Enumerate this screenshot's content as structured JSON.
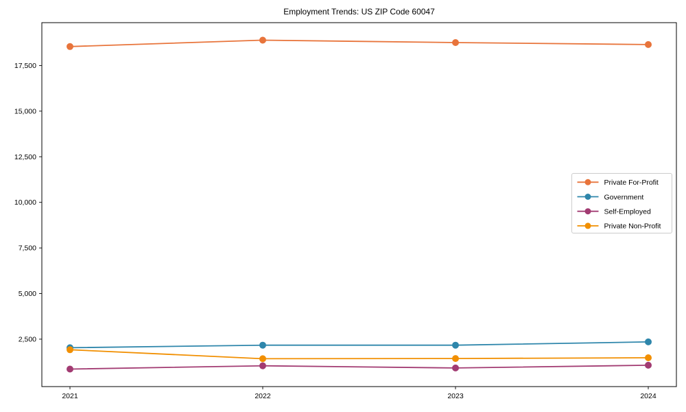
{
  "chart": {
    "background_color": "#ffffff",
    "axis_color": "#000000",
    "text_color": "#000000",
    "legend_border_color": "#cccccc",
    "legend_background": "#ffffff"
  },
  "chart_data": {
    "type": "line",
    "title": "Employment Trends: US ZIP Code 60047",
    "xlabel": "",
    "ylabel": "",
    "grid": false,
    "legend_position": "center-right",
    "x": [
      2021,
      2022,
      2023,
      2024
    ],
    "x_tick_labels": [
      "2021",
      "2022",
      "2023",
      "2024"
    ],
    "y_ticks": [
      2500,
      5000,
      7500,
      10000,
      12500,
      15000,
      17500
    ],
    "y_tick_labels": [
      "2,500",
      "5,000",
      "7,500",
      "10,000",
      "12,500",
      "15,000",
      "17,500"
    ],
    "ylim": [
      -100,
      19850
    ],
    "series": [
      {
        "name": "Private For-Profit",
        "color": "#E8743B",
        "values": [
          18540,
          18890,
          18760,
          18650
        ]
      },
      {
        "name": "Government",
        "color": "#2E86AB",
        "values": [
          2030,
          2170,
          2170,
          2350
        ]
      },
      {
        "name": "Self-Employed",
        "color": "#A23B72",
        "values": [
          860,
          1040,
          920,
          1070
        ]
      },
      {
        "name": "Private Non-Profit",
        "color": "#F18F01",
        "values": [
          1920,
          1430,
          1440,
          1480
        ]
      }
    ]
  }
}
